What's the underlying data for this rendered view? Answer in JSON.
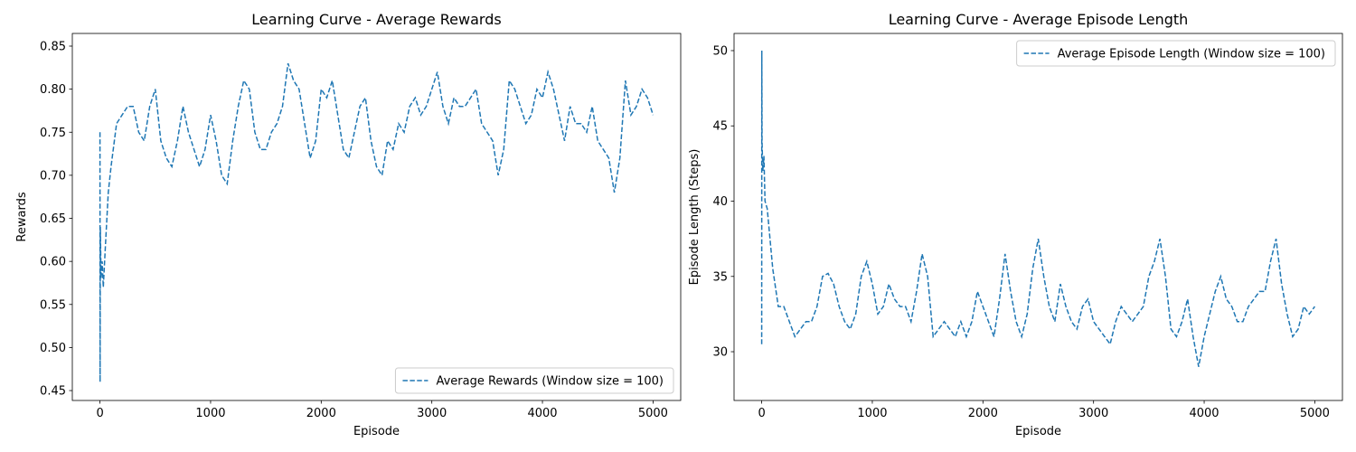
{
  "chart_data": [
    {
      "type": "line",
      "title": "Learning Curve - Average Rewards",
      "xlabel": "Episode",
      "ylabel": "Rewards",
      "x": [
        0,
        1,
        3,
        10,
        20,
        30,
        50,
        75,
        100,
        150,
        200,
        250,
        300,
        350,
        400,
        450,
        500,
        550,
        600,
        650,
        700,
        750,
        800,
        850,
        900,
        950,
        1000,
        1050,
        1100,
        1150,
        1200,
        1250,
        1300,
        1350,
        1400,
        1450,
        1500,
        1550,
        1600,
        1650,
        1700,
        1750,
        1800,
        1850,
        1900,
        1950,
        2000,
        2050,
        2100,
        2150,
        2200,
        2250,
        2300,
        2350,
        2400,
        2450,
        2500,
        2550,
        2600,
        2650,
        2700,
        2750,
        2800,
        2850,
        2900,
        2950,
        3000,
        3050,
        3100,
        3150,
        3200,
        3250,
        3300,
        3350,
        3400,
        3450,
        3500,
        3550,
        3600,
        3650,
        3700,
        3750,
        3800,
        3850,
        3900,
        3950,
        4000,
        4050,
        4100,
        4150,
        4200,
        4250,
        4300,
        4350,
        4400,
        4450,
        4500,
        4550,
        4600,
        4650,
        4700,
        4750,
        4800,
        4850,
        4900,
        4950,
        5000
      ],
      "series": [
        {
          "name": "Average Rewards (Window size = 100)",
          "color": "#1f77b4",
          "linestyle": "dashed",
          "values": [
            0.75,
            0.46,
            0.64,
            0.58,
            0.6,
            0.57,
            0.62,
            0.68,
            0.71,
            0.76,
            0.77,
            0.78,
            0.78,
            0.75,
            0.74,
            0.78,
            0.8,
            0.74,
            0.72,
            0.71,
            0.74,
            0.78,
            0.75,
            0.73,
            0.71,
            0.73,
            0.77,
            0.74,
            0.7,
            0.69,
            0.74,
            0.78,
            0.81,
            0.8,
            0.75,
            0.73,
            0.73,
            0.75,
            0.76,
            0.78,
            0.83,
            0.81,
            0.8,
            0.76,
            0.72,
            0.74,
            0.8,
            0.79,
            0.81,
            0.77,
            0.73,
            0.72,
            0.75,
            0.78,
            0.79,
            0.74,
            0.71,
            0.7,
            0.74,
            0.73,
            0.76,
            0.75,
            0.78,
            0.79,
            0.77,
            0.78,
            0.8,
            0.82,
            0.78,
            0.76,
            0.79,
            0.78,
            0.78,
            0.79,
            0.8,
            0.76,
            0.75,
            0.74,
            0.7,
            0.73,
            0.81,
            0.8,
            0.78,
            0.76,
            0.77,
            0.8,
            0.79,
            0.82,
            0.8,
            0.77,
            0.74,
            0.78,
            0.76,
            0.76,
            0.75,
            0.78,
            0.74,
            0.73,
            0.72,
            0.68,
            0.72,
            0.81,
            0.77,
            0.78,
            0.8,
            0.79,
            0.77
          ]
        }
      ],
      "xlim": [
        -250,
        5250
      ],
      "xticks": [
        0,
        1000,
        2000,
        3000,
        4000,
        5000
      ],
      "ylim": [
        0.4385,
        0.8647
      ],
      "yticks": [
        0.45,
        {
          "value": 0.5,
          "label": "0.50"
        },
        0.55,
        {
          "value": 0.6,
          "label": "0.60"
        },
        0.65,
        {
          "value": 0.7,
          "label": "0.70"
        },
        0.75,
        {
          "value": 0.8,
          "label": "0.80"
        },
        0.85
      ],
      "legend": "lower right",
      "grid": false
    },
    {
      "type": "line",
      "title": "Learning Curve - Average Episode Length",
      "xlabel": "Episode",
      "ylabel": "Episode Length (Steps)",
      "x": [
        0,
        1,
        3,
        10,
        20,
        30,
        50,
        75,
        100,
        150,
        200,
        250,
        300,
        350,
        400,
        450,
        500,
        550,
        600,
        650,
        700,
        750,
        800,
        850,
        900,
        950,
        1000,
        1050,
        1100,
        1150,
        1200,
        1250,
        1300,
        1350,
        1400,
        1450,
        1500,
        1550,
        1600,
        1650,
        1700,
        1750,
        1800,
        1850,
        1900,
        1950,
        2000,
        2050,
        2100,
        2150,
        2200,
        2250,
        2300,
        2350,
        2400,
        2450,
        2500,
        2550,
        2600,
        2650,
        2700,
        2750,
        2800,
        2850,
        2900,
        2950,
        3000,
        3050,
        3100,
        3150,
        3200,
        3250,
        3300,
        3350,
        3400,
        3450,
        3500,
        3550,
        3600,
        3650,
        3700,
        3750,
        3800,
        3850,
        3900,
        3950,
        4000,
        4050,
        4100,
        4150,
        4200,
        4250,
        4300,
        4350,
        4400,
        4450,
        4500,
        4550,
        4600,
        4650,
        4700,
        4750,
        4800,
        4850,
        4900,
        4950,
        5000
      ],
      "series": [
        {
          "name": "Average Episode Length (Window size = 100)",
          "color": "#1f77b4",
          "linestyle": "dashed",
          "values": [
            30.5,
            50,
            44,
            42,
            43,
            40,
            39.5,
            37.5,
            35.5,
            33,
            33,
            32,
            31,
            31.5,
            32,
            32,
            33,
            35,
            35.2,
            34.5,
            33,
            32,
            31.5,
            32.5,
            35,
            36,
            34.5,
            32.5,
            33,
            34.5,
            33.5,
            33,
            33,
            32,
            34,
            36.5,
            35,
            31,
            31.5,
            32,
            31.5,
            31,
            32,
            31,
            32,
            34,
            33,
            32,
            31,
            33.5,
            36.5,
            34,
            32,
            31,
            32.5,
            35.5,
            37.5,
            35,
            33,
            32,
            34.5,
            33,
            32,
            31.5,
            33,
            33.5,
            32,
            31.5,
            31,
            30.5,
            32,
            33,
            32.5,
            32,
            32.5,
            33,
            35,
            36,
            37.5,
            35,
            31.5,
            31,
            32,
            33.5,
            31,
            29,
            31,
            32.5,
            34,
            35,
            33.5,
            33,
            32,
            32,
            33,
            33.5,
            34,
            34,
            36,
            37.5,
            34.5,
            32.5,
            31,
            31.5,
            33,
            32.5,
            33
          ]
        }
      ],
      "xlim": [
        -250,
        5250
      ],
      "xticks": [
        0,
        1000,
        2000,
        3000,
        4000,
        5000
      ],
      "ylim": [
        26.76,
        51.14
      ],
      "yticks": [
        30,
        35,
        40,
        45,
        50
      ],
      "legend": "upper right",
      "grid": false
    }
  ]
}
